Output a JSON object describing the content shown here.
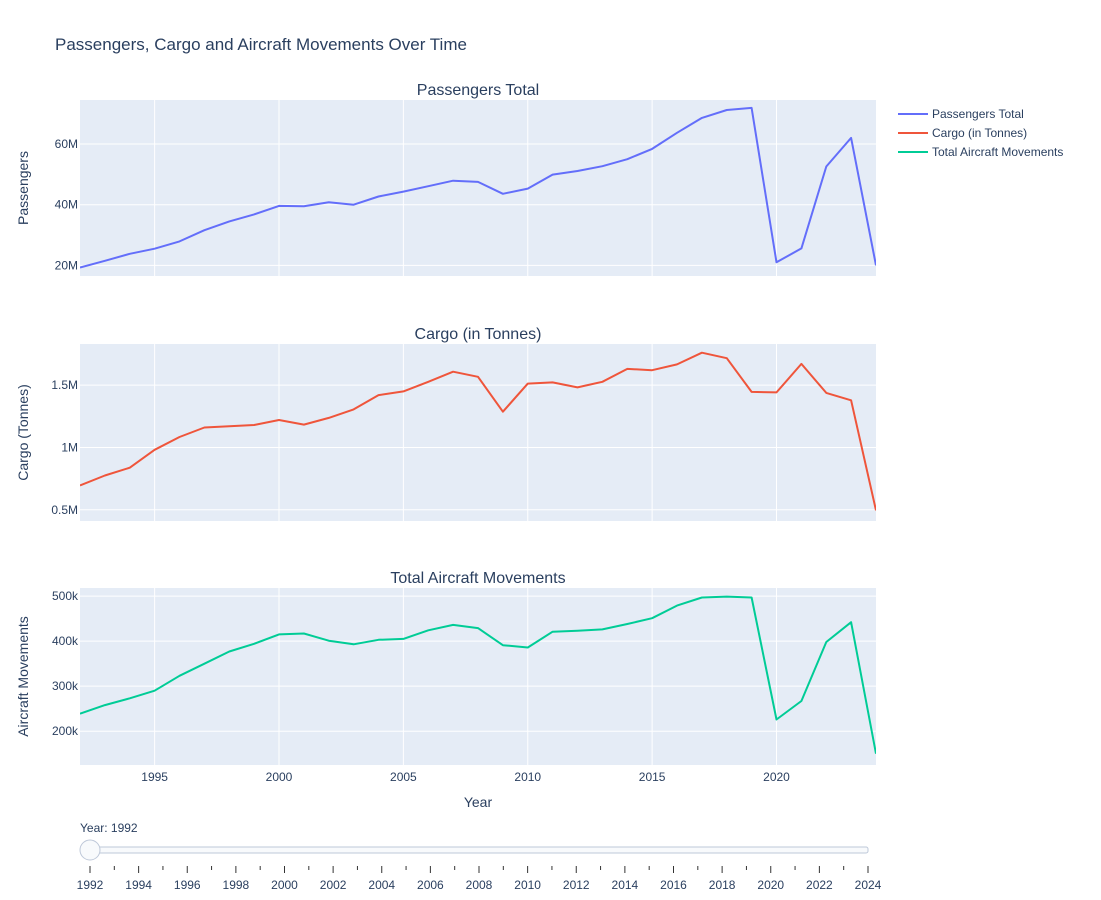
{
  "figure": {
    "title": "Passengers, Cargo and Aircraft Movements Over Time",
    "xlabel": "Year",
    "plot_bg": "#e5ecf6",
    "grid_color": "#ffffff",
    "text_color": "#2a3f5f"
  },
  "legend": {
    "position": "top-right",
    "items": [
      {
        "name": "Passengers Total",
        "color": "#636efa"
      },
      {
        "name": "Cargo (in Tonnes)",
        "color": "#ef553b"
      },
      {
        "name": "Total Aircraft Movements",
        "color": "#00cc96"
      }
    ]
  },
  "chart_data": [
    {
      "type": "line",
      "title": "Passengers Total",
      "ylabel": "Passengers",
      "color": "#636efa",
      "xlim": [
        1992,
        2024
      ],
      "ylim": [
        16500000,
        74500000
      ],
      "yticks": [
        20000000,
        40000000,
        60000000
      ],
      "ytick_labels": [
        "20M",
        "40M",
        "60M"
      ],
      "grid": true,
      "x": [
        1992,
        1993,
        1994,
        1995,
        1996,
        1997,
        1998,
        1999,
        2000,
        2001,
        2002,
        2003,
        2004,
        2005,
        2006,
        2007,
        2008,
        2009,
        2010,
        2011,
        2012,
        2013,
        2014,
        2015,
        2016,
        2017,
        2018,
        2019,
        2020,
        2021,
        2022,
        2023,
        2024
      ],
      "values": [
        19300000,
        21500000,
        23800000,
        25500000,
        27900000,
        31600000,
        34500000,
        36800000,
        39600000,
        39500000,
        40800000,
        40000000,
        42700000,
        44300000,
        46100000,
        47900000,
        47500000,
        43600000,
        45300000,
        49900000,
        51100000,
        52700000,
        55000000,
        58400000,
        63700000,
        68600000,
        71200000,
        71900000,
        21000000,
        25600000,
        52600000,
        62000000,
        20000000
      ]
    },
    {
      "type": "line",
      "title": "Cargo (in Tonnes)",
      "ylabel": "Cargo (Tonnes)",
      "color": "#ef553b",
      "xlim": [
        1992,
        2024
      ],
      "ylim": [
        410000,
        1830000
      ],
      "yticks": [
        500000,
        1000000,
        1500000
      ],
      "ytick_labels": [
        "0.5M",
        "1M",
        "1.5M"
      ],
      "grid": true,
      "x": [
        1992,
        1993,
        1994,
        1995,
        1996,
        1997,
        1998,
        1999,
        2000,
        2001,
        2002,
        2003,
        2004,
        2005,
        2006,
        2007,
        2008,
        2009,
        2010,
        2011,
        2012,
        2013,
        2014,
        2015,
        2016,
        2017,
        2018,
        2019,
        2020,
        2021,
        2022,
        2023,
        2024
      ],
      "values": [
        695000,
        775000,
        838000,
        981000,
        1084000,
        1160000,
        1170000,
        1180000,
        1220000,
        1183000,
        1237000,
        1305000,
        1420000,
        1450000,
        1527000,
        1608000,
        1567000,
        1287000,
        1512000,
        1522000,
        1482000,
        1527000,
        1630000,
        1620000,
        1666000,
        1760000,
        1716000,
        1446000,
        1442000,
        1670000,
        1438000,
        1378000,
        495000
      ]
    },
    {
      "type": "line",
      "title": "Total Aircraft Movements",
      "ylabel": "Aircraft Movements",
      "color": "#00cc96",
      "xlim": [
        1992,
        2024
      ],
      "ylim": [
        125000,
        518000
      ],
      "yticks": [
        200000,
        300000,
        400000,
        500000
      ],
      "ytick_labels": [
        "200k",
        "300k",
        "400k",
        "500k"
      ],
      "grid": true,
      "x": [
        1992,
        1993,
        1994,
        1995,
        1996,
        1997,
        1998,
        1999,
        2000,
        2001,
        2002,
        2003,
        2004,
        2005,
        2006,
        2007,
        2008,
        2009,
        2010,
        2011,
        2012,
        2013,
        2014,
        2015,
        2016,
        2017,
        2018,
        2019,
        2020,
        2021,
        2022,
        2023,
        2024
      ],
      "values": [
        239000,
        258000,
        273000,
        290000,
        323000,
        350000,
        377000,
        394000,
        415000,
        417000,
        401000,
        393000,
        403000,
        405000,
        424000,
        436000,
        429000,
        391000,
        386000,
        421000,
        423000,
        426000,
        438000,
        451000,
        479000,
        497000,
        499000,
        497000,
        226000,
        267000,
        398000,
        442000,
        150000
      ]
    }
  ],
  "xticks": [
    1995,
    2000,
    2005,
    2010,
    2015,
    2020
  ],
  "xtick_labels": [
    "1995",
    "2000",
    "2005",
    "2010",
    "2015",
    "2020"
  ],
  "slider": {
    "current_label": "Year: 1992",
    "min": 1992,
    "max": 2024,
    "value": 1992,
    "labels": [
      "1992",
      "1994",
      "1996",
      "1998",
      "2000",
      "2002",
      "2004",
      "2006",
      "2008",
      "2010",
      "2012",
      "2014",
      "2016",
      "2018",
      "2020",
      "2022",
      "2024"
    ]
  }
}
